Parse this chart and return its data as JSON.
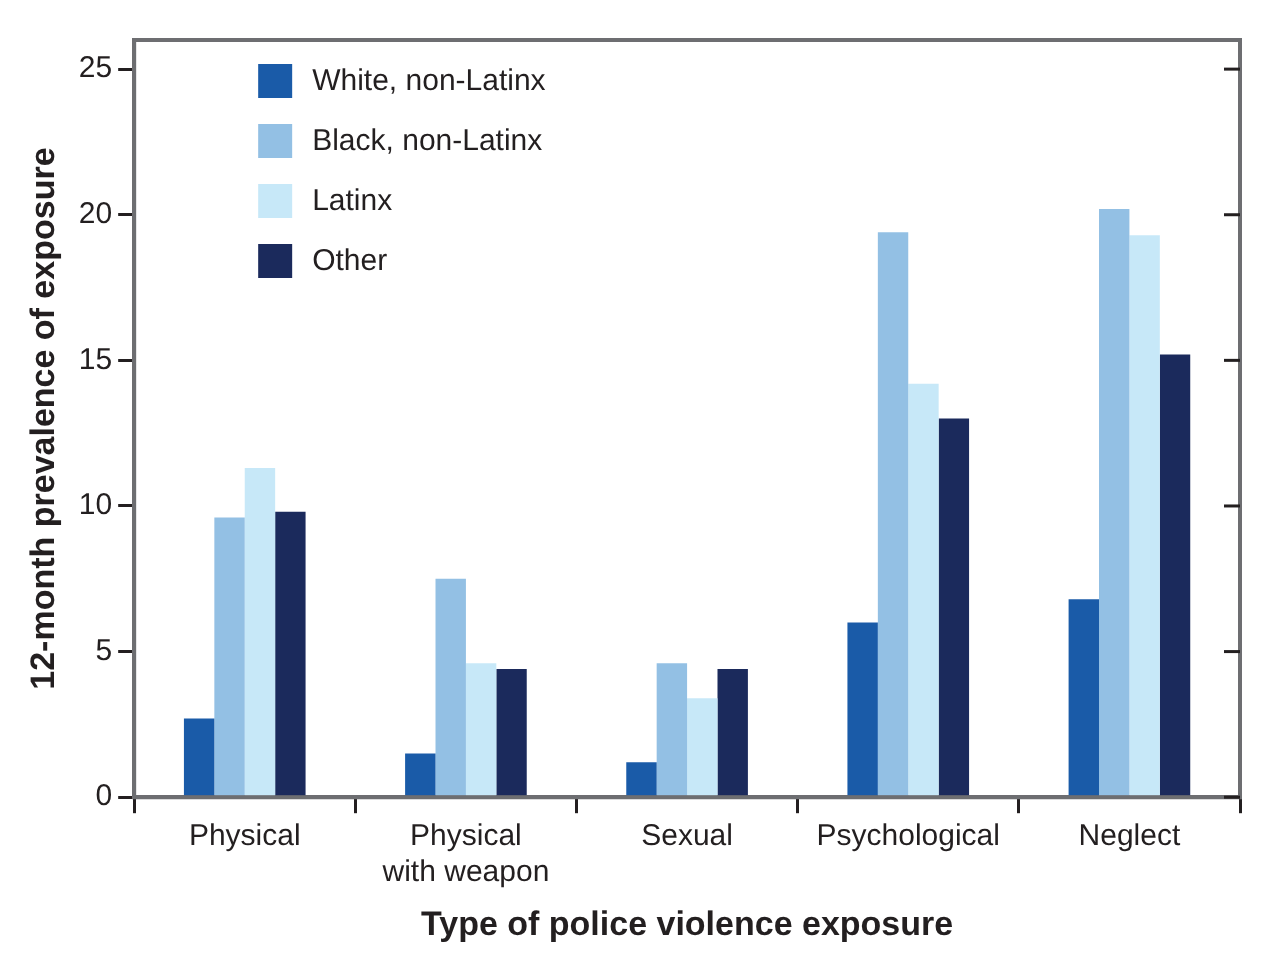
{
  "chart_data": {
    "type": "bar",
    "xlabel": "Type of police violence exposure",
    "ylabel": "12-month prevalence of exposure",
    "categories": [
      "Physical",
      "Physical\nwith weapon",
      "Sexual",
      "Psychological",
      "Neglect"
    ],
    "series": [
      {
        "name": "White, non-Latinx",
        "color": "#1a5ba8",
        "values": [
          2.7,
          1.5,
          1.2,
          6.0,
          6.8
        ]
      },
      {
        "name": "Black, non-Latinx",
        "color": "#93c0e4",
        "values": [
          9.6,
          7.5,
          4.6,
          19.4,
          20.2
        ]
      },
      {
        "name": "Latinx",
        "color": "#c7e8f8",
        "values": [
          11.3,
          4.6,
          3.4,
          14.2,
          19.3
        ]
      },
      {
        "name": "Other",
        "color": "#1b2a5c",
        "values": [
          9.8,
          4.4,
          4.4,
          13.0,
          15.2
        ]
      }
    ],
    "ylim": [
      0,
      26
    ],
    "yticks": [
      0,
      5,
      10,
      15,
      20,
      25
    ],
    "grid": false,
    "legend": "top left"
  }
}
